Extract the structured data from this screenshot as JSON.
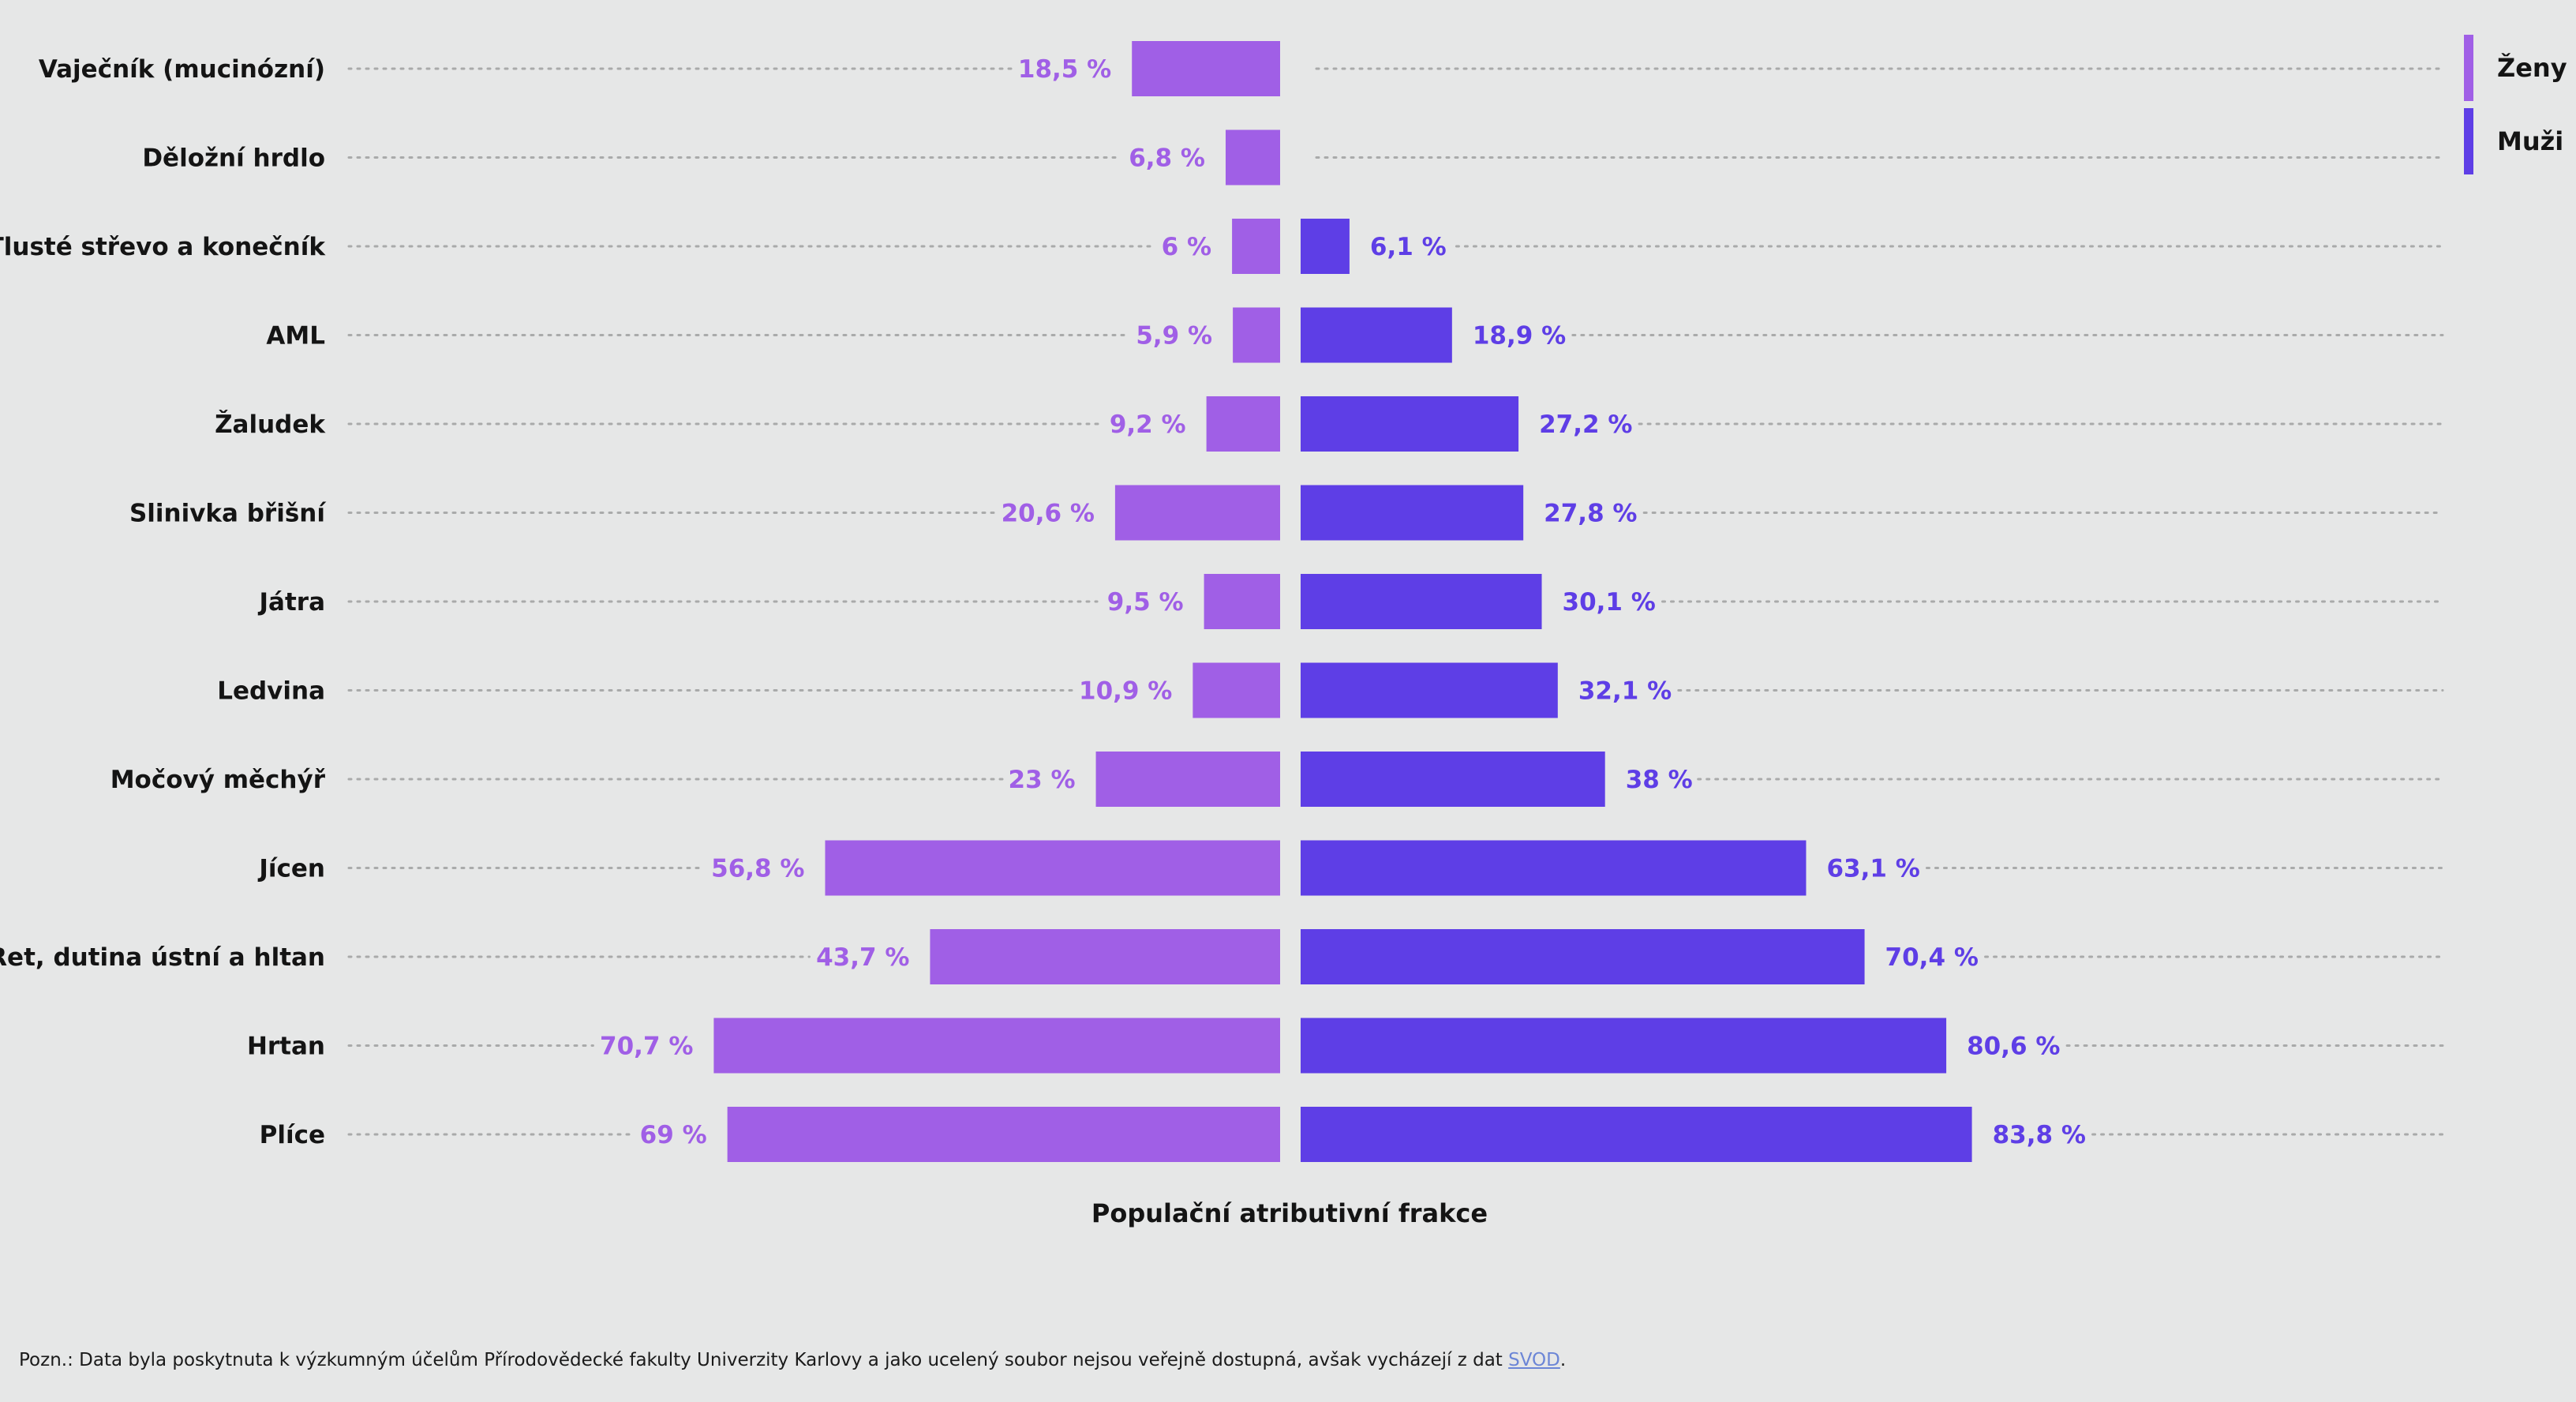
{
  "chart_data": {
    "type": "bar",
    "orientation": "horizontal-diverging",
    "xlabel": "Populační atributivní frakce",
    "categories": [
      "Vaječník (mucinózní)",
      "Děložní hrdlo",
      "Tlusté střevo a konečník",
      "AML",
      "Žaludek",
      "Slinivka břišní",
      "Játra",
      "Ledvina",
      "Močový měchýř",
      "Jícen",
      "Ret, dutina ústní a hltan",
      "Hrtan",
      "Plíce"
    ],
    "series": [
      {
        "name": "Ženy",
        "color": "#a05fe6",
        "side": "left",
        "values": [
          18.5,
          6.8,
          6,
          5.9,
          9.2,
          20.6,
          9.5,
          10.9,
          23,
          56.8,
          43.7,
          70.7,
          69
        ],
        "labels": [
          "18,5 %",
          "6,8 %",
          "6 %",
          "5,9 %",
          "9,2 %",
          "20,6 %",
          "9,5 %",
          "10,9 %",
          "23 %",
          "56,8 %",
          "43,7 %",
          "70,7 %",
          "69 %"
        ]
      },
      {
        "name": "Muži",
        "color": "#5e3ee6",
        "side": "right",
        "values": [
          null,
          null,
          6.1,
          18.9,
          27.2,
          27.8,
          30.1,
          32.1,
          38,
          63.1,
          70.4,
          80.6,
          83.8
        ],
        "labels": [
          null,
          null,
          "6,1 %",
          "18,9 %",
          "27,2 %",
          "27,8 %",
          "30,1 %",
          "32,1 %",
          "38 %",
          "63,1 %",
          "70,4 %",
          "80,6 %",
          "83,8 %"
        ]
      }
    ],
    "xlim": [
      0,
      100
    ],
    "legend_position": "top-right",
    "grid": false
  },
  "footnote": {
    "text": "Pozn.: Data byla poskytnuta k výzkumným účelům Přírodovědecké fakulty Univerzity Karlovy a jako ucelený soubor nejsou veřejně dostupná, avšak vycházejí z dat ",
    "link_text": "SVOD",
    "end": "."
  }
}
